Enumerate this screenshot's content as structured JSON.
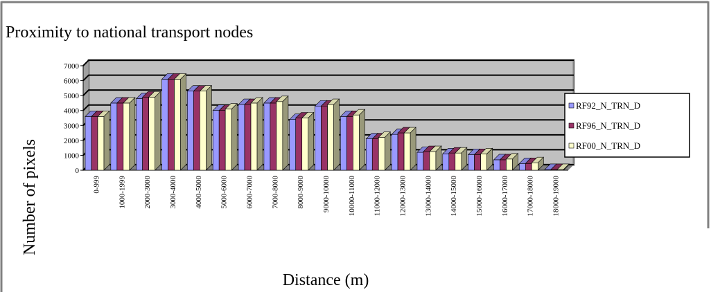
{
  "chart_data": {
    "type": "bar3d",
    "title": "Proximity to national transport nodes",
    "x_label": "Distance (m)",
    "y_label": "Number of pixels",
    "categories": [
      "0-999",
      "1000-1999",
      "2000-3000",
      "3000-4000",
      "4000-5000",
      "5000-6000",
      "6000-7000",
      "7000-8000",
      "8000-9000",
      "9000-10000",
      "10000-11000",
      "11000-12000",
      "12000-13000",
      "13000-14000",
      "14000-15000",
      "15000-16000",
      "16000-17000",
      "17000-18000",
      "18000-19000"
    ],
    "series": [
      {
        "name": "RF92_N_TRN_D",
        "color": "#9999ff",
        "values": [
          3600,
          4500,
          4800,
          6100,
          5300,
          4000,
          4400,
          4500,
          3400,
          4300,
          3600,
          2100,
          2400,
          1200,
          1100,
          1050,
          700,
          450,
          50
        ]
      },
      {
        "name": "RF96_N_TRN_D",
        "color": "#993366",
        "values": [
          3600,
          4500,
          4900,
          6100,
          5300,
          4000,
          4400,
          4500,
          3500,
          4300,
          3600,
          2100,
          2500,
          1250,
          1150,
          1050,
          700,
          450,
          50
        ]
      },
      {
        "name": "RF00_N_TRN_D",
        "color": "#ffffcc",
        "values": [
          3600,
          4500,
          4900,
          6100,
          5300,
          4100,
          4500,
          4600,
          3500,
          4400,
          3700,
          2200,
          2500,
          1250,
          1150,
          1100,
          750,
          500,
          50
        ]
      }
    ],
    "ylim": [
      0,
      7000
    ],
    "yticks": [
      0,
      1000,
      2000,
      3000,
      4000,
      5000,
      6000,
      7000
    ],
    "grid": true,
    "legend": "right"
  }
}
